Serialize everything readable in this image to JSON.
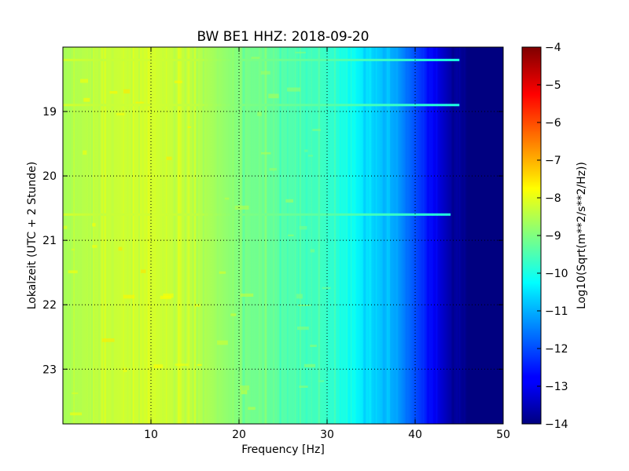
{
  "chart_data": {
    "type": "heatmap",
    "title": "BW BE1 HHZ: 2018-09-20",
    "xlabel": "Frequency [Hz]",
    "ylabel": "Lokalzeit (UTC + 2 Stunde)",
    "xlim": [
      0,
      50
    ],
    "ylim": [
      18.0,
      23.85
    ],
    "y_inverted": true,
    "x_ticks": [
      10,
      20,
      30,
      40,
      50
    ],
    "x_tick_labels": [
      "10",
      "20",
      "30",
      "40",
      "50"
    ],
    "y_ticks": [
      19,
      20,
      21,
      22,
      23
    ],
    "y_tick_labels": [
      "19",
      "20",
      "21",
      "22",
      "23"
    ],
    "grid": true,
    "colormap": "jet",
    "colorbar": {
      "label": "Log10(Sqrt(m**2/s**2/Hz))",
      "range": [
        -14,
        -4
      ],
      "ticks": [
        -4,
        -5,
        -6,
        -7,
        -8,
        -9,
        -10,
        -11,
        -12,
        -13,
        -14
      ],
      "tick_labels": [
        "−4",
        "−5",
        "−6",
        "−7",
        "−8",
        "−9",
        "−10",
        "−11",
        "−12",
        "−13",
        "−14"
      ]
    },
    "frequency_profile": {
      "frequency_hz": [
        0,
        5,
        10,
        15,
        20,
        25,
        30,
        33,
        36,
        38,
        40,
        42,
        44,
        46,
        50
      ],
      "log10_amplitude": [
        -8.6,
        -8.3,
        -8.2,
        -8.4,
        -9.0,
        -9.4,
        -9.7,
        -10.2,
        -10.8,
        -11.2,
        -12.0,
        -12.8,
        -13.6,
        -14.0,
        -14.0
      ]
    },
    "bright_lines": [
      {
        "time_h": 18.2,
        "max_freq_hz": 45,
        "log10_amplitude": -8.2
      },
      {
        "time_h": 18.9,
        "max_freq_hz": 45,
        "log10_amplitude": -8.2
      },
      {
        "time_h": 20.6,
        "max_freq_hz": 44,
        "log10_amplitude": -8.2
      }
    ]
  }
}
